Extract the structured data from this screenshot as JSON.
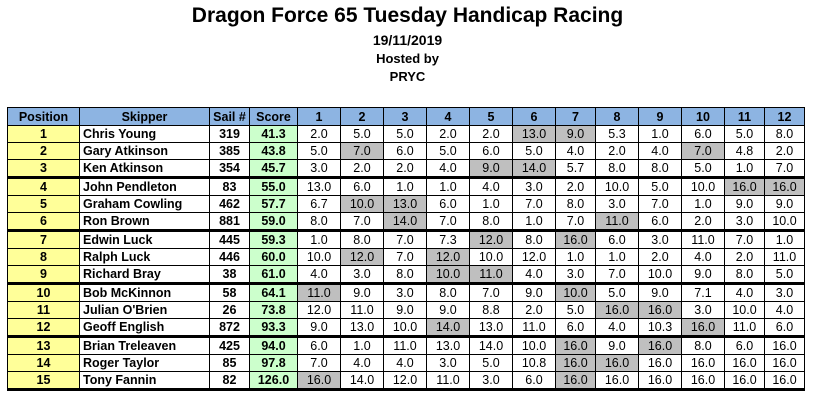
{
  "title": "Dragon Force 65 Tuesday Handicap Racing",
  "date": "19/11/2019",
  "hosted_by_label": "Hosted by",
  "host": "PRYC",
  "colors": {
    "header_bg": "#8db4e2",
    "position_bg": "#ffff99",
    "score_bg": "#ccffcc",
    "discard_bg": "#bfbfbf"
  },
  "columns": [
    "Position",
    "Skipper",
    "Sail #",
    "Score",
    "1",
    "2",
    "3",
    "4",
    "5",
    "6",
    "7",
    "8",
    "9",
    "10",
    "11",
    "12"
  ],
  "rows": [
    {
      "position": "1",
      "skipper": "Chris Young",
      "sail": "319",
      "score": "41.3",
      "races": [
        "2.0",
        "5.0",
        "5.0",
        "2.0",
        "2.0",
        "13.0",
        "9.0",
        "5.3",
        "1.0",
        "6.0",
        "5.0",
        "8.0"
      ],
      "discards": [
        5,
        6
      ]
    },
    {
      "position": "2",
      "skipper": "Gary Atkinson",
      "sail": "385",
      "score": "43.8",
      "races": [
        "5.0",
        "7.0",
        "6.0",
        "5.0",
        "6.0",
        "5.0",
        "4.0",
        "2.0",
        "4.0",
        "7.0",
        "4.8",
        "2.0"
      ],
      "discards": [
        1,
        9
      ]
    },
    {
      "position": "3",
      "skipper": "Ken Atkinson",
      "sail": "354",
      "score": "45.7",
      "races": [
        "3.0",
        "2.0",
        "2.0",
        "4.0",
        "9.0",
        "14.0",
        "5.7",
        "8.0",
        "8.0",
        "5.0",
        "1.0",
        "7.0"
      ],
      "discards": [
        4,
        5
      ]
    },
    {
      "position": "4",
      "skipper": "John Pendleton",
      "sail": "83",
      "score": "55.0",
      "races": [
        "13.0",
        "6.0",
        "1.0",
        "1.0",
        "4.0",
        "3.0",
        "2.0",
        "10.0",
        "5.0",
        "10.0",
        "16.0",
        "16.0"
      ],
      "discards": [
        10,
        11
      ]
    },
    {
      "position": "5",
      "skipper": "Graham Cowling",
      "sail": "462",
      "score": "57.7",
      "races": [
        "6.7",
        "10.0",
        "13.0",
        "6.0",
        "1.0",
        "7.0",
        "8.0",
        "3.0",
        "7.0",
        "1.0",
        "9.0",
        "9.0"
      ],
      "discards": [
        1,
        2
      ]
    },
    {
      "position": "6",
      "skipper": "Ron Brown",
      "sail": "881",
      "score": "59.0",
      "races": [
        "8.0",
        "7.0",
        "14.0",
        "7.0",
        "8.0",
        "1.0",
        "7.0",
        "11.0",
        "6.0",
        "2.0",
        "3.0",
        "10.0"
      ],
      "discards": [
        2,
        7
      ]
    },
    {
      "position": "7",
      "skipper": "Edwin Luck",
      "sail": "445",
      "score": "59.3",
      "races": [
        "1.0",
        "8.0",
        "7.0",
        "7.3",
        "12.0",
        "8.0",
        "16.0",
        "6.0",
        "3.0",
        "11.0",
        "7.0",
        "1.0"
      ],
      "discards": [
        4,
        6
      ]
    },
    {
      "position": "8",
      "skipper": "Ralph Luck",
      "sail": "446",
      "score": "60.0",
      "races": [
        "10.0",
        "12.0",
        "7.0",
        "12.0",
        "10.0",
        "12.0",
        "1.0",
        "1.0",
        "2.0",
        "4.0",
        "2.0",
        "11.0"
      ],
      "discards": [
        1,
        3
      ]
    },
    {
      "position": "9",
      "skipper": "Richard Bray",
      "sail": "38",
      "score": "61.0",
      "races": [
        "4.0",
        "3.0",
        "8.0",
        "10.0",
        "11.0",
        "4.0",
        "3.0",
        "7.0",
        "10.0",
        "9.0",
        "8.0",
        "5.0"
      ],
      "discards": [
        3,
        4
      ]
    },
    {
      "position": "10",
      "skipper": "Bob McKinnon",
      "sail": "58",
      "score": "64.1",
      "races": [
        "11.0",
        "9.0",
        "3.0",
        "8.0",
        "7.0",
        "9.0",
        "10.0",
        "5.0",
        "9.0",
        "7.1",
        "4.0",
        "3.0"
      ],
      "discards": [
        0,
        6
      ]
    },
    {
      "position": "11",
      "skipper": "Julian O'Brien",
      "sail": "26",
      "score": "73.8",
      "races": [
        "12.0",
        "11.0",
        "9.0",
        "9.0",
        "8.8",
        "2.0",
        "5.0",
        "16.0",
        "16.0",
        "3.0",
        "10.0",
        "4.0"
      ],
      "discards": [
        7,
        8
      ]
    },
    {
      "position": "12",
      "skipper": "Geoff English",
      "sail": "872",
      "score": "93.3",
      "races": [
        "9.0",
        "13.0",
        "10.0",
        "14.0",
        "13.0",
        "11.0",
        "6.0",
        "4.0",
        "10.3",
        "16.0",
        "11.0",
        "6.0"
      ],
      "discards": [
        3,
        9
      ]
    },
    {
      "position": "13",
      "skipper": "Brian Treleaven",
      "sail": "425",
      "score": "94.0",
      "races": [
        "6.0",
        "1.0",
        "11.0",
        "13.0",
        "14.0",
        "10.0",
        "16.0",
        "9.0",
        "16.0",
        "8.0",
        "6.0",
        "16.0"
      ],
      "discards": [
        6,
        8
      ]
    },
    {
      "position": "14",
      "skipper": "Roger Taylor",
      "sail": "85",
      "score": "97.8",
      "races": [
        "7.0",
        "4.0",
        "4.0",
        "3.0",
        "5.0",
        "10.8",
        "16.0",
        "16.0",
        "16.0",
        "16.0",
        "16.0",
        "16.0"
      ],
      "discards": [
        6,
        7
      ]
    },
    {
      "position": "15",
      "skipper": "Tony Fannin",
      "sail": "82",
      "score": "126.0",
      "races": [
        "16.0",
        "14.0",
        "12.0",
        "11.0",
        "3.0",
        "6.0",
        "16.0",
        "16.0",
        "16.0",
        "16.0",
        "16.0",
        "16.0"
      ],
      "discards": [
        0,
        6
      ]
    }
  ]
}
